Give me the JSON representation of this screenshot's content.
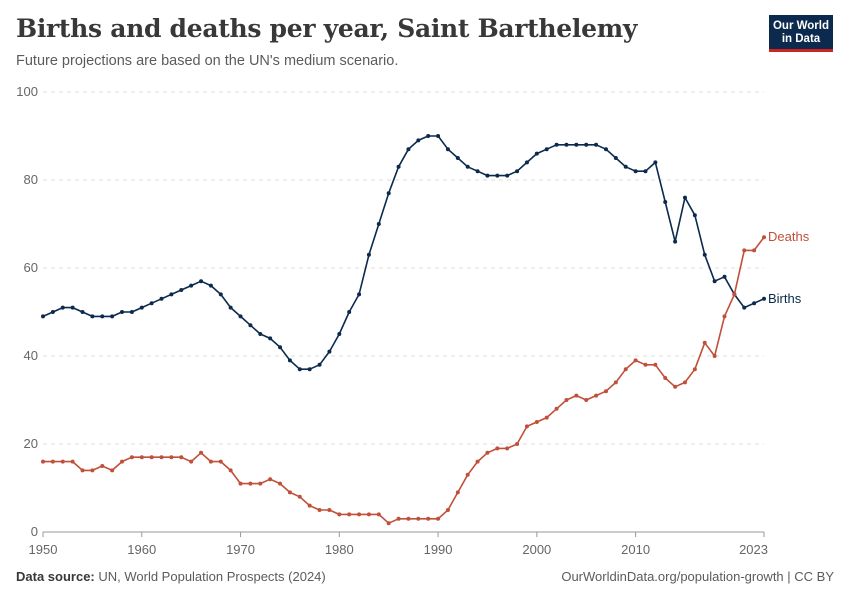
{
  "header": {
    "title": "Births and deaths per year, Saint Barthelemy",
    "subtitle": "Future projections are based on the UN's medium scenario.",
    "logo_line1": "Our World",
    "logo_line2": "in Data"
  },
  "footer": {
    "source_label": "Data source:",
    "source_text": " UN, World Population Prospects (2024)",
    "credit": "OurWorldinData.org/population-growth | CC BY"
  },
  "colors": {
    "births": "#0c2a4d",
    "deaths": "#c0503a",
    "grid": "#dddddd",
    "axis": "#999999"
  },
  "chart_data": {
    "type": "line",
    "title": "Births and deaths per year, Saint Barthelemy",
    "subtitle": "Future projections are based on the UN's medium scenario.",
    "xlabel": "",
    "ylabel": "",
    "xlim": [
      1950,
      2023
    ],
    "ylim": [
      0,
      100
    ],
    "x_ticks": [
      1950,
      1960,
      1970,
      1980,
      1990,
      2000,
      2010,
      2023
    ],
    "y_ticks": [
      0,
      20,
      40,
      60,
      80,
      100
    ],
    "grid": "horizontal dashed",
    "legend": "inline labels at line ends",
    "x": [
      1950,
      1951,
      1952,
      1953,
      1954,
      1955,
      1956,
      1957,
      1958,
      1959,
      1960,
      1961,
      1962,
      1963,
      1964,
      1965,
      1966,
      1967,
      1968,
      1969,
      1970,
      1971,
      1972,
      1973,
      1974,
      1975,
      1976,
      1977,
      1978,
      1979,
      1980,
      1981,
      1982,
      1983,
      1984,
      1985,
      1986,
      1987,
      1988,
      1989,
      1990,
      1991,
      1992,
      1993,
      1994,
      1995,
      1996,
      1997,
      1998,
      1999,
      2000,
      2001,
      2002,
      2003,
      2004,
      2005,
      2006,
      2007,
      2008,
      2009,
      2010,
      2011,
      2012,
      2013,
      2014,
      2015,
      2016,
      2017,
      2018,
      2019,
      2020,
      2021,
      2022,
      2023
    ],
    "series": [
      {
        "name": "Births",
        "values": [
          49,
          50,
          51,
          51,
          50,
          49,
          49,
          49,
          50,
          50,
          51,
          52,
          53,
          54,
          55,
          56,
          57,
          56,
          54,
          51,
          49,
          47,
          45,
          44,
          42,
          39,
          37,
          37,
          38,
          41,
          45,
          50,
          54,
          63,
          70,
          77,
          83,
          87,
          89,
          90,
          90,
          87,
          85,
          83,
          82,
          81,
          81,
          81,
          82,
          84,
          86,
          87,
          88,
          88,
          88,
          88,
          88,
          87,
          85,
          83,
          82,
          82,
          84,
          75,
          66,
          76,
          72,
          63,
          57,
          58,
          54,
          51,
          52,
          53
        ]
      },
      {
        "name": "Deaths",
        "values": [
          16,
          16,
          16,
          16,
          14,
          14,
          15,
          14,
          16,
          17,
          17,
          17,
          17,
          17,
          17,
          16,
          18,
          16,
          16,
          14,
          11,
          11,
          11,
          12,
          11,
          9,
          8,
          6,
          5,
          5,
          4,
          4,
          4,
          4,
          4,
          2,
          3,
          3,
          3,
          3,
          3,
          5,
          9,
          13,
          16,
          18,
          19,
          19,
          20,
          24,
          25,
          26,
          28,
          30,
          31,
          30,
          31,
          32,
          34,
          37,
          39,
          38,
          38,
          35,
          33,
          34,
          37,
          43,
          40,
          49,
          54,
          64,
          64,
          67
        ]
      }
    ]
  }
}
